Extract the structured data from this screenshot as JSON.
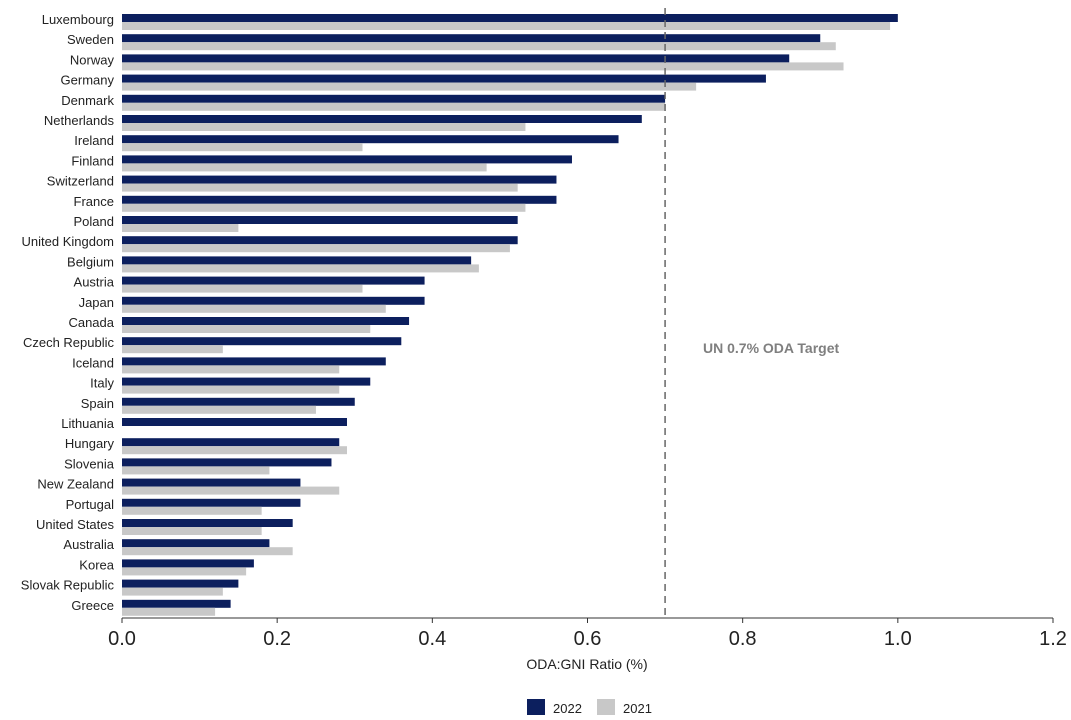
{
  "chart_data": {
    "type": "bar",
    "orientation": "horizontal",
    "categories": [
      "Luxembourg",
      "Sweden",
      "Norway",
      "Germany",
      "Denmark",
      "Netherlands",
      "Ireland",
      "Finland",
      "Switzerland",
      "France",
      "Poland",
      "United Kingdom",
      "Belgium",
      "Austria",
      "Japan",
      "Canada",
      "Czech Republic",
      "Iceland",
      "Italy",
      "Spain",
      "Lithuania",
      "Hungary",
      "Slovenia",
      "New Zealand",
      "Portugal",
      "United States",
      "Australia",
      "Korea",
      "Slovak Republic",
      "Greece"
    ],
    "series": [
      {
        "name": "2022",
        "color": "#0c1f5e",
        "values": [
          1.0,
          0.9,
          0.86,
          0.83,
          0.7,
          0.67,
          0.64,
          0.58,
          0.56,
          0.56,
          0.51,
          0.51,
          0.45,
          0.39,
          0.39,
          0.37,
          0.36,
          0.34,
          0.32,
          0.3,
          0.29,
          0.28,
          0.27,
          0.23,
          0.23,
          0.22,
          0.19,
          0.17,
          0.15,
          0.14
        ]
      },
      {
        "name": "2021",
        "color": "#c8c8c8",
        "values": [
          0.99,
          0.92,
          0.93,
          0.74,
          0.7,
          0.52,
          0.31,
          0.47,
          0.51,
          0.52,
          0.15,
          0.5,
          0.46,
          0.31,
          0.34,
          0.32,
          0.13,
          0.28,
          0.28,
          0.25,
          null,
          0.29,
          0.19,
          0.28,
          0.18,
          0.18,
          0.22,
          0.16,
          0.13,
          0.12
        ]
      }
    ],
    "xlabel": "ODA:GNI Ratio (%)",
    "xlim": [
      0,
      1.2
    ],
    "xticks": [
      0.0,
      0.2,
      0.4,
      0.6,
      0.8,
      1.0,
      1.2
    ],
    "xtick_labels": [
      "0.0",
      "0.2",
      "0.4",
      "0.6",
      "0.8",
      "1.0",
      "1.2"
    ],
    "reference_line": {
      "value": 0.7,
      "label": "UN 0.7% ODA Target",
      "style": "dashed"
    },
    "legend": {
      "placement": "bottom-center"
    },
    "grid": false
  }
}
